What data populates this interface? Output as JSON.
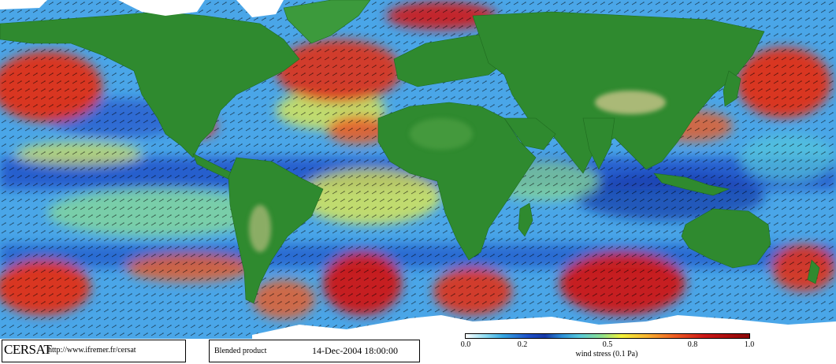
{
  "credits": {
    "logo": "CERSAT",
    "url": "http://www.ifremer.fr/cersat"
  },
  "product": {
    "label": "Blended product",
    "timestamp": "14-Dec-2004 18:00:00"
  },
  "colorbar": {
    "ticks": [
      "0.0",
      "0.2",
      "0.5",
      "0.8",
      "1.0"
    ],
    "tick_values": [
      0.0,
      0.2,
      0.5,
      0.8,
      1.0
    ],
    "range": [
      0.0,
      1.0
    ],
    "label": "wind stress (0.1 Pa)",
    "colors": [
      "#ffffff",
      "#36a8e2",
      "#1638a6",
      "#56c8dc",
      "#f2f23a",
      "#ee5a22",
      "#8a0606"
    ]
  },
  "map": {
    "land_color": "#2f8a2f",
    "ice_color": "#ffffff",
    "ocean_base_color": "#3f7fe0"
  }
}
